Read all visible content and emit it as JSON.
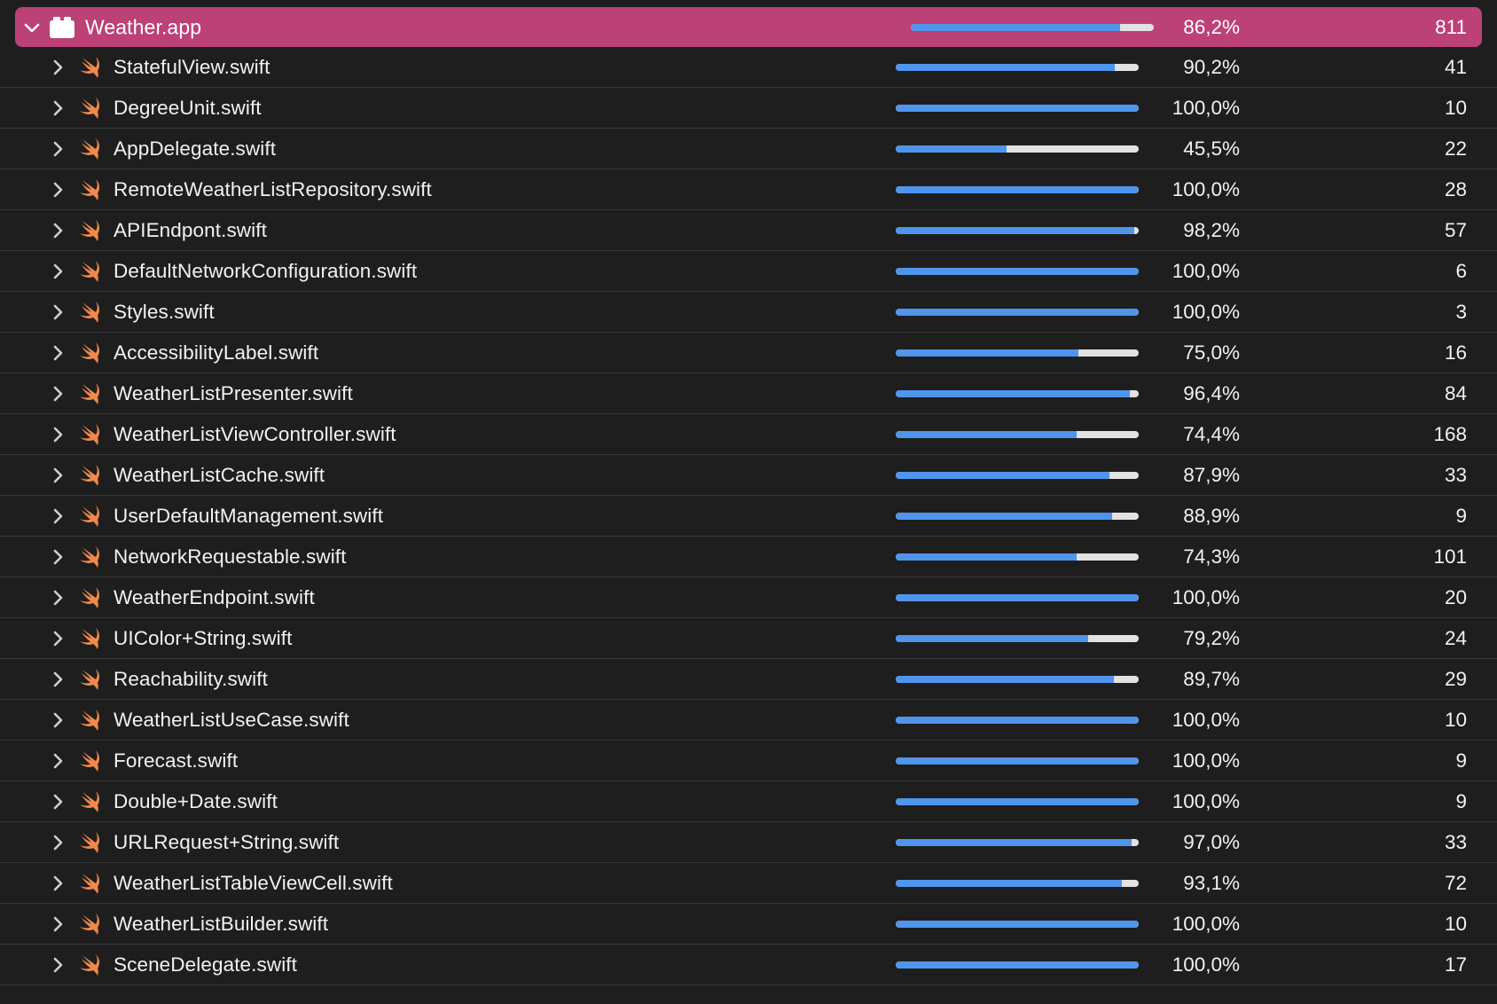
{
  "target": {
    "name": "Weather.app",
    "coverage_pct": 86.2,
    "coverage_label": "86,2%",
    "lines": "811",
    "icon": "app-bundle-icon"
  },
  "colors": {
    "header_bg": "#bc4176",
    "row_bg": "#1e1e1e",
    "bar_fill": "#4f95ec",
    "bar_track": "#e2e2e2",
    "swift_orange": "#f0894a"
  },
  "files": [
    {
      "name": "StatefulView.swift",
      "coverage_pct": 90.2,
      "coverage_label": "90,2%",
      "lines": "41"
    },
    {
      "name": "DegreeUnit.swift",
      "coverage_pct": 100.0,
      "coverage_label": "100,0%",
      "lines": "10"
    },
    {
      "name": "AppDelegate.swift",
      "coverage_pct": 45.5,
      "coverage_label": "45,5%",
      "lines": "22"
    },
    {
      "name": "RemoteWeatherListRepository.swift",
      "coverage_pct": 100.0,
      "coverage_label": "100,0%",
      "lines": "28"
    },
    {
      "name": "APIEndpont.swift",
      "coverage_pct": 98.2,
      "coverage_label": "98,2%",
      "lines": "57"
    },
    {
      "name": "DefaultNetworkConfiguration.swift",
      "coverage_pct": 100.0,
      "coverage_label": "100,0%",
      "lines": "6"
    },
    {
      "name": "Styles.swift",
      "coverage_pct": 100.0,
      "coverage_label": "100,0%",
      "lines": "3"
    },
    {
      "name": "AccessibilityLabel.swift",
      "coverage_pct": 75.0,
      "coverage_label": "75,0%",
      "lines": "16"
    },
    {
      "name": "WeatherListPresenter.swift",
      "coverage_pct": 96.4,
      "coverage_label": "96,4%",
      "lines": "84"
    },
    {
      "name": "WeatherListViewController.swift",
      "coverage_pct": 74.4,
      "coverage_label": "74,4%",
      "lines": "168"
    },
    {
      "name": "WeatherListCache.swift",
      "coverage_pct": 87.9,
      "coverage_label": "87,9%",
      "lines": "33"
    },
    {
      "name": "UserDefaultManagement.swift",
      "coverage_pct": 88.9,
      "coverage_label": "88,9%",
      "lines": "9"
    },
    {
      "name": "NetworkRequestable.swift",
      "coverage_pct": 74.3,
      "coverage_label": "74,3%",
      "lines": "101"
    },
    {
      "name": "WeatherEndpoint.swift",
      "coverage_pct": 100.0,
      "coverage_label": "100,0%",
      "lines": "20"
    },
    {
      "name": "UIColor+String.swift",
      "coverage_pct": 79.2,
      "coverage_label": "79,2%",
      "lines": "24"
    },
    {
      "name": "Reachability.swift",
      "coverage_pct": 89.7,
      "coverage_label": "89,7%",
      "lines": "29"
    },
    {
      "name": "WeatherListUseCase.swift",
      "coverage_pct": 100.0,
      "coverage_label": "100,0%",
      "lines": "10"
    },
    {
      "name": "Forecast.swift",
      "coverage_pct": 100.0,
      "coverage_label": "100,0%",
      "lines": "9"
    },
    {
      "name": "Double+Date.swift",
      "coverage_pct": 100.0,
      "coverage_label": "100,0%",
      "lines": "9"
    },
    {
      "name": "URLRequest+String.swift",
      "coverage_pct": 97.0,
      "coverage_label": "97,0%",
      "lines": "33"
    },
    {
      "name": "WeatherListTableViewCell.swift",
      "coverage_pct": 93.1,
      "coverage_label": "93,1%",
      "lines": "72"
    },
    {
      "name": "WeatherListBuilder.swift",
      "coverage_pct": 100.0,
      "coverage_label": "100,0%",
      "lines": "10"
    },
    {
      "name": "SceneDelegate.swift",
      "coverage_pct": 100.0,
      "coverage_label": "100,0%",
      "lines": "17"
    }
  ]
}
